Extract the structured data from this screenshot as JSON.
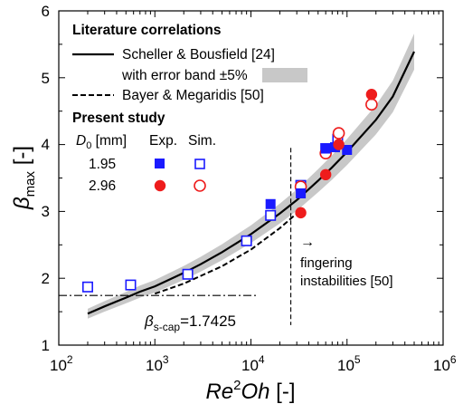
{
  "chart_data": {
    "type": "scatter",
    "xscale": "log",
    "xlim": [
      100,
      1000000
    ],
    "ylim": [
      1,
      6
    ],
    "xlabel": {
      "main": "Re",
      "sup": "2",
      "rest": "Oh",
      "unit": " [-]"
    },
    "ylabel": {
      "main": "β",
      "sub": "max",
      "unit": " [-]"
    },
    "x_ticks": [
      {
        "value": 100,
        "base": "10",
        "exp": "2"
      },
      {
        "value": 1000,
        "base": "10",
        "exp": "3"
      },
      {
        "value": 10000,
        "base": "10",
        "exp": "4"
      },
      {
        "value": 100000,
        "base": "10",
        "exp": "5"
      },
      {
        "value": 1000000,
        "base": "10",
        "exp": "6"
      }
    ],
    "y_ticks": [
      "1",
      "2",
      "3",
      "4",
      "5",
      "6"
    ],
    "legend": {
      "title1": "Literature correlations",
      "scheller": "Scheller & Bousfield [24]",
      "band": "with error band ±5%",
      "bayer": "Bayer & Megaridis [50]",
      "title2": "Present study",
      "d0_symbol": "D",
      "d0_sub": "0",
      "d0_unit": " [mm]",
      "exp": "Exp.",
      "sim": "Sim.",
      "d1": "1.95",
      "d2": "2.96"
    },
    "series": [
      {
        "name": "Scheller & Bousfield [24]",
        "kind": "curve",
        "style": "solid",
        "x": [
          200,
          300,
          500,
          700,
          1000,
          2000,
          3000,
          5000,
          7000,
          10000,
          20000,
          30000,
          50000,
          70000,
          100000,
          200000,
          300000,
          500000
        ],
        "y": [
          1.47,
          1.58,
          1.71,
          1.8,
          1.88,
          2.08,
          2.21,
          2.39,
          2.52,
          2.66,
          2.97,
          3.17,
          3.46,
          3.66,
          3.89,
          4.37,
          4.72,
          5.39
        ]
      },
      {
        "name": "with error band ±5%",
        "kind": "band",
        "fraction": 0.05
      },
      {
        "name": "Bayer & Megaridis [50]",
        "kind": "curve",
        "style": "dashed",
        "x": [
          1000,
          2000,
          5000,
          10000,
          20000,
          30000
        ],
        "y": [
          1.77,
          1.92,
          2.18,
          2.43,
          2.75,
          2.97
        ]
      },
      {
        "name": "1.95 Exp.",
        "kind": "points",
        "marker": "square-filled",
        "color": "#1a1aff",
        "x": [
          16000,
          33000,
          60000,
          75000,
          100000
        ],
        "y": [
          3.11,
          3.27,
          3.94,
          3.96,
          3.92
        ]
      },
      {
        "name": "1.95 Sim.",
        "kind": "points",
        "marker": "square-open",
        "color": "#1a1aff",
        "x": [
          200,
          560,
          2200,
          9000,
          16000,
          33000,
          60000,
          80000
        ],
        "y": [
          1.87,
          1.9,
          2.06,
          2.56,
          2.94,
          3.39,
          3.94,
          4.08
        ]
      },
      {
        "name": "2.96 Exp.",
        "kind": "points",
        "marker": "circle-filled",
        "color": "#ee1c1c",
        "x": [
          33000,
          60000,
          82000,
          180000
        ],
        "y": [
          2.98,
          3.55,
          4.0,
          4.75
        ]
      },
      {
        "name": "2.96 Sim.",
        "kind": "points",
        "marker": "circle-open",
        "color": "#ee1c1c",
        "x": [
          33000,
          60000,
          82000,
          180000
        ],
        "y": [
          3.37,
          3.87,
          4.17,
          4.6
        ]
      }
    ],
    "annotations": {
      "fingering_line_x": 26000,
      "fingering_arrow": "→",
      "fingering_line1": "fingering",
      "fingering_line2": "instabilities [50]",
      "scap_y": 1.7425,
      "scap_symbol": "β",
      "scap_sub": "s-cap",
      "scap_value": "=1.7425"
    },
    "colors": {
      "blue": "#1a1aff",
      "red": "#ee1c1c",
      "band": "#c8c8c8"
    }
  }
}
